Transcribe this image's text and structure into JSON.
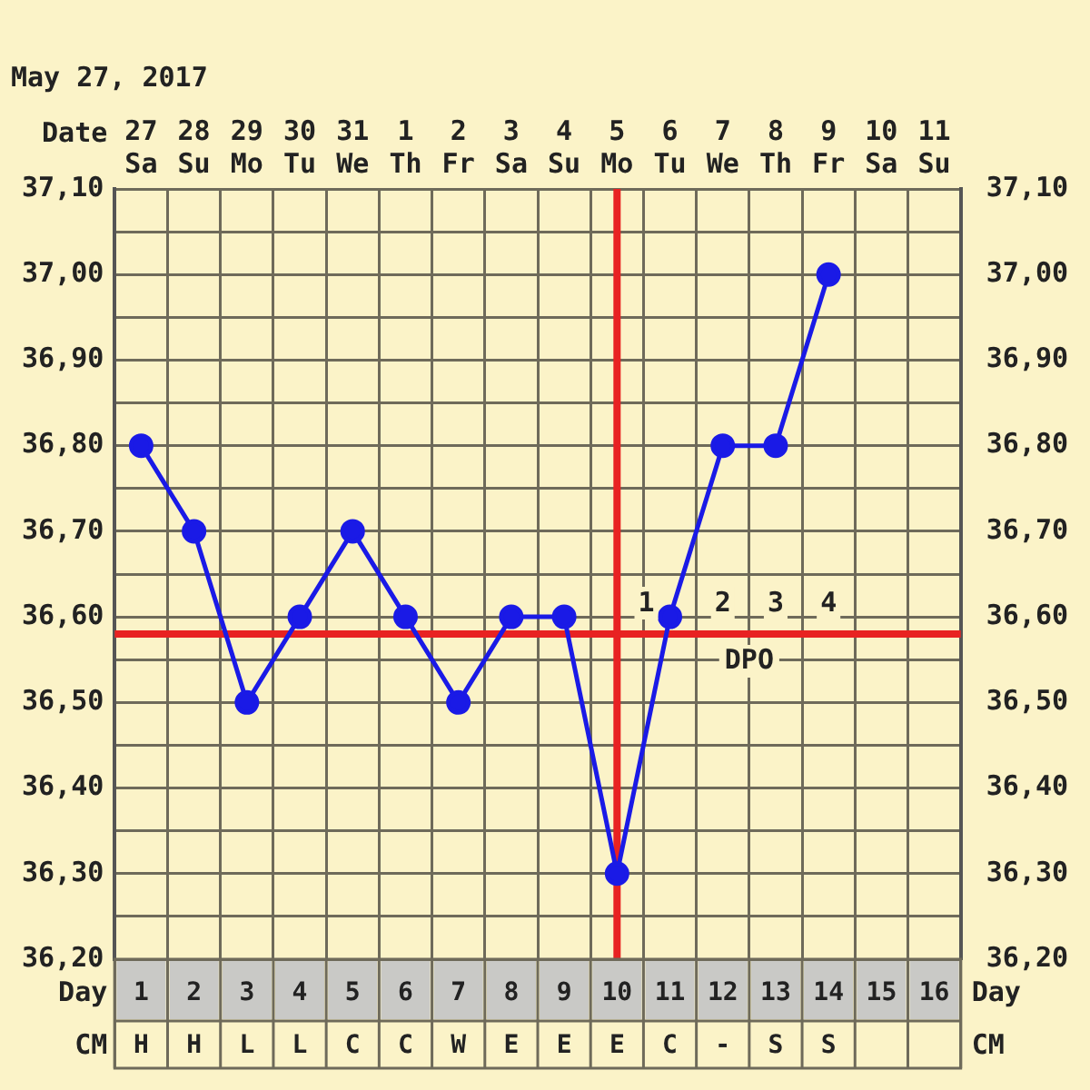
{
  "chart_data": {
    "type": "line",
    "title": "May 27, 2017",
    "categories": [
      "27 Sa",
      "28 Su",
      "29 Mo",
      "30 Tu",
      "31 We",
      "1 Th",
      "2 Fr",
      "3 Sa",
      "4 Su",
      "5 Mo",
      "6 Tu",
      "7 We",
      "8 Th",
      "9 Fr",
      "10 Sa",
      "11 Su"
    ],
    "values": [
      36.8,
      36.7,
      36.5,
      36.6,
      36.7,
      36.6,
      36.5,
      36.6,
      36.6,
      36.3,
      36.6,
      36.8,
      36.8,
      37.0,
      null,
      null
    ],
    "color": "#1a1ae6",
    "marker": "circle",
    "line_style": "solid",
    "grid": true,
    "xlabel": "Date",
    "ylim": [
      36.2,
      37.1
    ],
    "yticks": [
      {
        "value": 36.2,
        "label": "36,20"
      },
      {
        "value": 36.25,
        "label": null
      },
      {
        "value": 36.3,
        "label": "36,30"
      },
      {
        "value": 36.35,
        "label": null
      },
      {
        "value": 36.4,
        "label": "36,40"
      },
      {
        "value": 36.45,
        "label": null
      },
      {
        "value": 36.5,
        "label": "36,50"
      },
      {
        "value": 36.55,
        "label": null
      },
      {
        "value": 36.6,
        "label": "36,60"
      },
      {
        "value": 36.65,
        "label": null
      },
      {
        "value": 36.7,
        "label": "36,70"
      },
      {
        "value": 36.75,
        "label": null
      },
      {
        "value": 36.8,
        "label": "36,80"
      },
      {
        "value": 36.85,
        "label": null
      },
      {
        "value": 36.9,
        "label": "36,90"
      },
      {
        "value": 36.95,
        "label": null
      },
      {
        "value": 37.0,
        "label": "37,00"
      },
      {
        "value": 37.05,
        "label": null
      },
      {
        "value": 37.1,
        "label": "37,10"
      }
    ],
    "y2lim": [
      36.2,
      37.1
    ],
    "y2ticks": [
      {
        "value": 36.2,
        "label": "36,20"
      },
      {
        "value": 36.3,
        "label": "36,30"
      },
      {
        "value": 36.4,
        "label": "36,40"
      },
      {
        "value": 36.5,
        "label": "36,50"
      },
      {
        "value": 36.6,
        "label": "36,60"
      },
      {
        "value": 36.7,
        "label": "36,70"
      },
      {
        "value": 36.8,
        "label": "36,80"
      },
      {
        "value": 36.9,
        "label": "36,90"
      },
      {
        "value": 37.0,
        "label": "37,00"
      },
      {
        "value": 37.1,
        "label": "37,10"
      }
    ],
    "ref_lines": [
      {
        "axis": "y",
        "value": 36.58,
        "color": "#e82222"
      },
      {
        "axis": "x",
        "value": "5 Mo",
        "color": "#e82222"
      }
    ],
    "annotations": [
      {
        "text": "1",
        "x": "6 Tu",
        "y": 36.58
      },
      {
        "text": "2",
        "x": "7 We",
        "y": 36.58
      },
      {
        "text": "3",
        "x": "8 Th",
        "y": 36.58
      },
      {
        "text": "4",
        "x": "9 Fr",
        "y": 36.58
      },
      "DPO",
      "Day",
      "1",
      "2",
      "3",
      "4",
      "5",
      "6",
      "7",
      "8",
      "9",
      "10",
      "11",
      "12",
      "13",
      "14",
      "15",
      "16",
      "CM",
      "H",
      "H",
      "L",
      "L",
      "C",
      "C",
      "W",
      "E",
      "E",
      "E",
      "C",
      "-",
      "S",
      "S"
    ],
    "legend": false
  }
}
